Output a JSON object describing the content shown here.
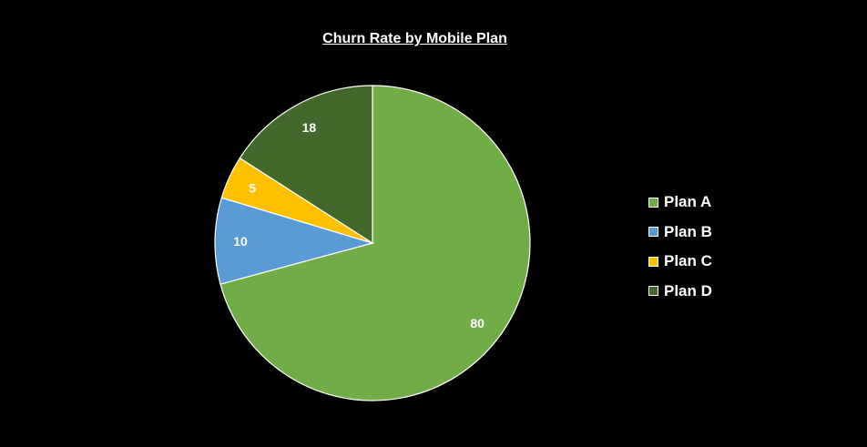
{
  "chart_data": {
    "type": "pie",
    "title": "Churn Rate by Mobile Plan",
    "categories": [
      "Plan A",
      "Plan B",
      "Plan C",
      "Plan D"
    ],
    "values": [
      80,
      10,
      5,
      18
    ],
    "colors": [
      "#70AD47",
      "#5B9BD5",
      "#FFC000",
      "#43682B"
    ],
    "legend_position": "right",
    "data_labels": true
  }
}
